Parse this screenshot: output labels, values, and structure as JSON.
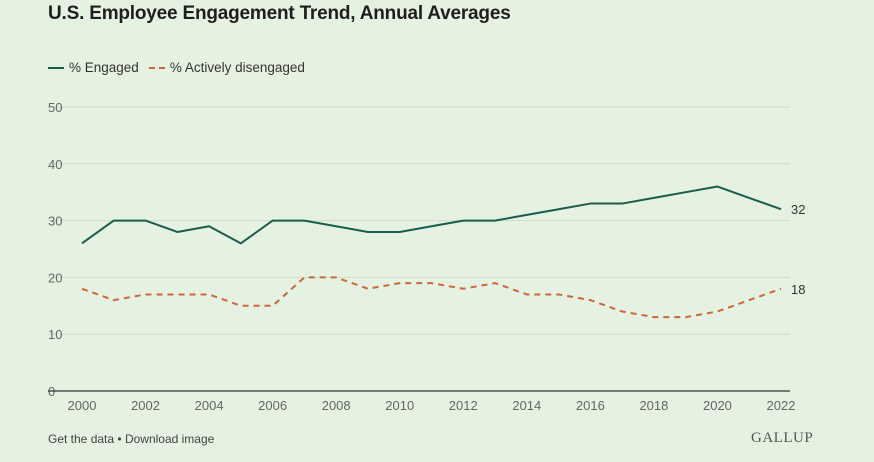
{
  "chart_data": {
    "type": "line",
    "title": "U.S. Employee Engagement Trend, Annual Averages",
    "x": [
      2000,
      2001,
      2002,
      2003,
      2004,
      2005,
      2006,
      2007,
      2008,
      2009,
      2010,
      2011,
      2012,
      2013,
      2014,
      2015,
      2016,
      2017,
      2018,
      2019,
      2020,
      2021,
      2022
    ],
    "series": [
      {
        "name": "% Engaged",
        "color": "#1a5c4f",
        "style": "solid",
        "values": [
          26,
          30,
          30,
          28,
          29,
          26,
          30,
          30,
          29,
          28,
          28,
          29,
          30,
          30,
          31,
          32,
          33,
          33,
          34,
          35,
          36,
          34,
          32
        ],
        "end_label": "32"
      },
      {
        "name": "% Actively disengaged",
        "color": "#c9683a",
        "style": "dashed",
        "values": [
          18,
          16,
          17,
          17,
          17,
          15,
          15,
          20,
          20,
          18,
          19,
          19,
          18,
          19,
          17,
          17,
          16,
          14,
          13,
          13,
          14,
          16,
          18
        ],
        "end_label": "18"
      }
    ],
    "xlim": [
      2000,
      2022
    ],
    "ylim": [
      0,
      50
    ],
    "yticks": [
      "0",
      "10",
      "20",
      "30",
      "40",
      "50"
    ],
    "xticks": [
      "2000",
      "2002",
      "2004",
      "2006",
      "2008",
      "2010",
      "2012",
      "2014",
      "2016",
      "2018",
      "2020",
      "2022"
    ],
    "xtick_values": [
      2000,
      2002,
      2004,
      2006,
      2008,
      2010,
      2012,
      2014,
      2016,
      2018,
      2020,
      2022
    ],
    "grid": true,
    "legend": "top-left"
  },
  "footer": {
    "get_data": "Get the data",
    "separator": "•",
    "download": "Download image"
  },
  "brand": "GALLUP"
}
